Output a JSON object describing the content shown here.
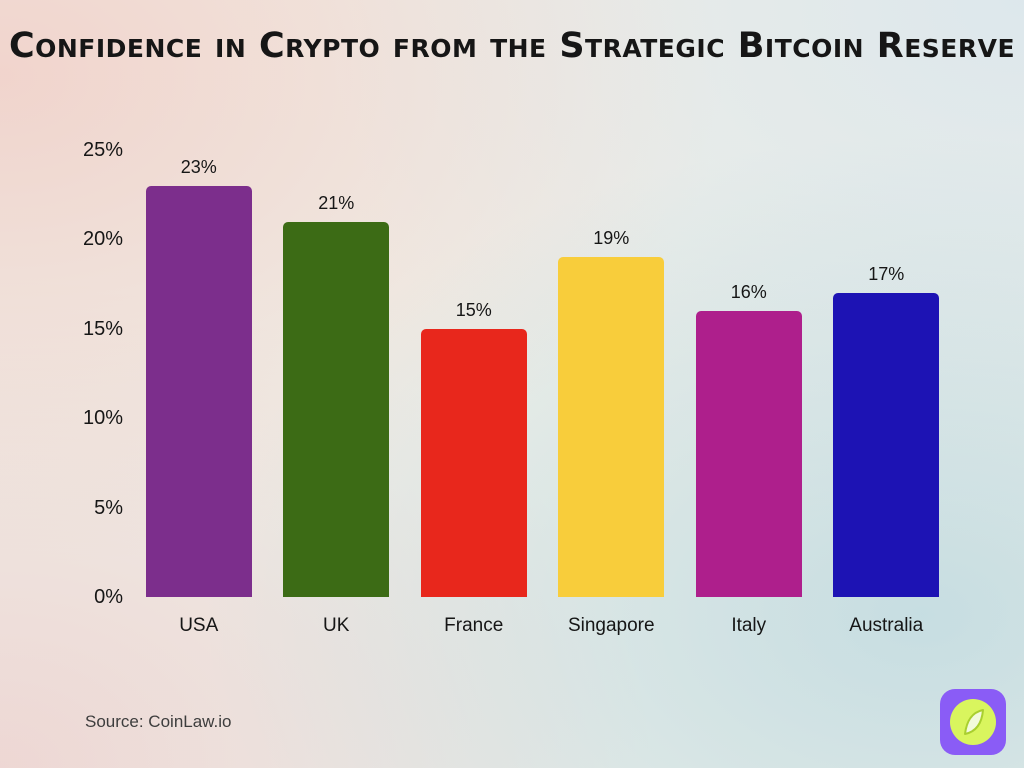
{
  "title": "Confidence in Crypto from the Strategic Bitcoin Reserve",
  "source": "Source: CoinLaw.io",
  "logo": {
    "name": "coinlaw-logo",
    "bg_color": "#8a5cf6",
    "circle_color": "#d9f55e",
    "leaf_color": "#f2fadc"
  },
  "chart_data": {
    "type": "bar",
    "title": "Confidence in Crypto from the Strategic Bitcoin Reserve",
    "categories": [
      "USA",
      "UK",
      "France",
      "Singapore",
      "Italy",
      "Australia"
    ],
    "values": [
      23,
      21,
      15,
      19,
      16,
      17
    ],
    "value_labels": [
      "23%",
      "21%",
      "15%",
      "19%",
      "16%",
      "17%"
    ],
    "bar_colors": [
      "#7c2e8c",
      "#3c6b15",
      "#e8271c",
      "#f8cd3b",
      "#ae1f8c",
      "#1d13b4"
    ],
    "xlabel": "",
    "ylabel": "",
    "ylim": [
      0,
      25
    ],
    "yticks": [
      "0%",
      "5%",
      "10%",
      "15%",
      "20%",
      "25%"
    ],
    "grid": false,
    "legend": false
  }
}
